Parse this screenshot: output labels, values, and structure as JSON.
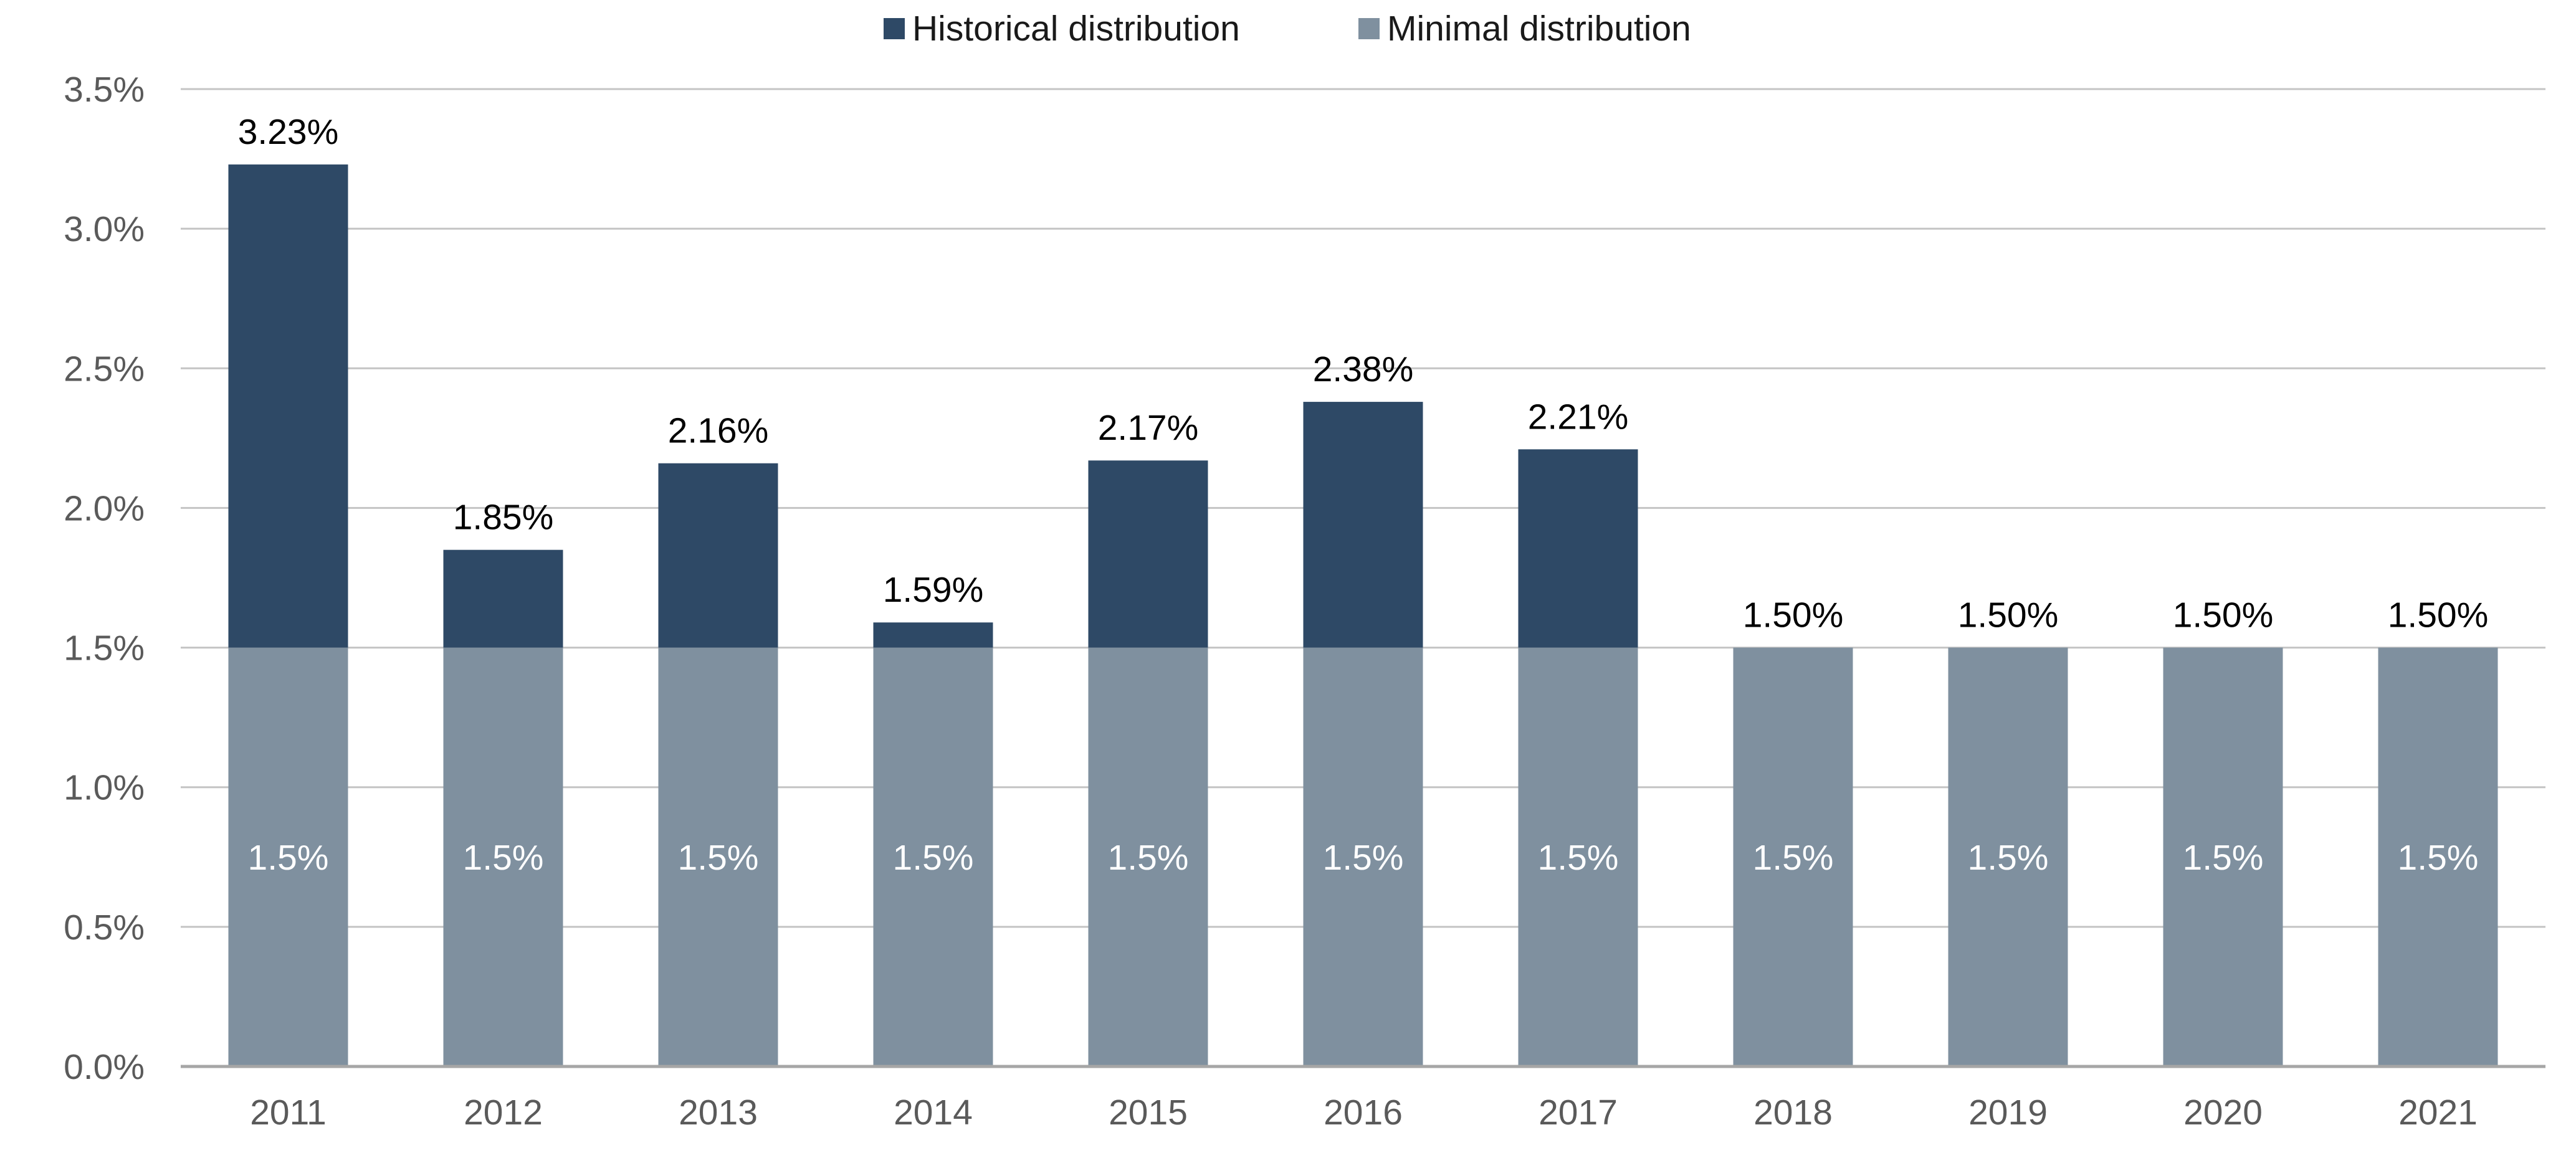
{
  "colors": {
    "historical": "#2e4966",
    "minimal": "#7f909f",
    "grid": "#c4c4c4",
    "axis": "#a6a6a6",
    "tick_text": "#5a5a5a"
  },
  "legend": {
    "items": [
      {
        "label": "Historical distribution",
        "color_key": "historical"
      },
      {
        "label": "Minimal distribution",
        "color_key": "minimal"
      }
    ],
    "placement": "top-center"
  },
  "chart_data": {
    "type": "bar",
    "stacked": true,
    "categories": [
      "2011",
      "2012",
      "2013",
      "2014",
      "2015",
      "2016",
      "2017",
      "2018",
      "2019",
      "2020",
      "2021"
    ],
    "series": [
      {
        "name": "Minimal distribution",
        "values": [
          1.5,
          1.5,
          1.5,
          1.5,
          1.5,
          1.5,
          1.5,
          1.5,
          1.5,
          1.5,
          1.5
        ]
      },
      {
        "name": "Historical distribution",
        "values": [
          1.73,
          0.35,
          0.66,
          0.09,
          0.67,
          0.88,
          0.71,
          0,
          0,
          0,
          0
        ]
      }
    ],
    "totals": [
      3.23,
      1.85,
      2.16,
      1.59,
      2.17,
      2.38,
      2.21,
      1.5,
      1.5,
      1.5,
      1.5
    ],
    "total_labels": [
      "3.23%",
      "1.85%",
      "2.16%",
      "1.59%",
      "2.17%",
      "2.38%",
      "2.21%",
      "1.50%",
      "1.50%",
      "1.50%",
      "1.50%"
    ],
    "base_labels": [
      "1.5%",
      "1.5%",
      "1.5%",
      "1.5%",
      "1.5%",
      "1.5%",
      "1.5%",
      "1.5%",
      "1.5%",
      "1.5%",
      "1.5%"
    ],
    "ylim": [
      0,
      3.5
    ],
    "yticks": [
      0.0,
      0.5,
      1.0,
      1.5,
      2.0,
      2.5,
      3.0,
      3.5
    ],
    "ytick_labels": [
      "0.0%",
      "0.5%",
      "1.0%",
      "1.5%",
      "2.0%",
      "2.5%",
      "3.0%",
      "3.5%"
    ],
    "grid": true,
    "title": "",
    "xlabel": "",
    "ylabel": ""
  }
}
